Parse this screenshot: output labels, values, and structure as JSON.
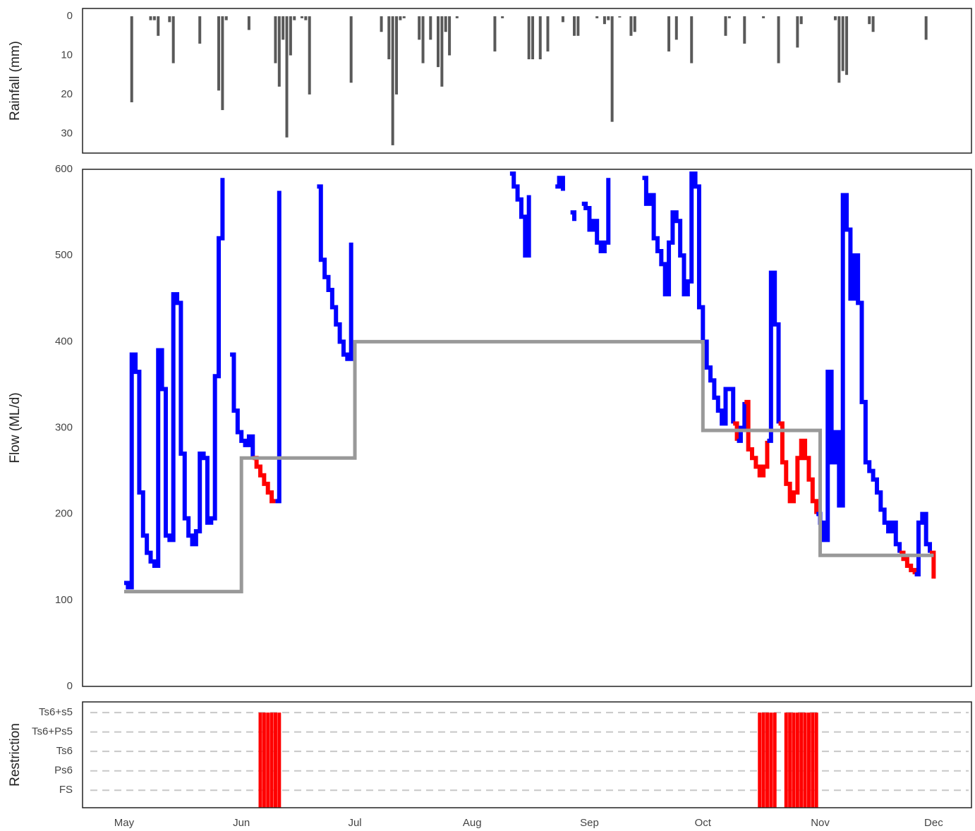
{
  "chart_data": [
    {
      "type": "bar",
      "ylabel": "Rainfall (mm)",
      "x": [
        2,
        7,
        8,
        9,
        12,
        13,
        20,
        25,
        26,
        27,
        33,
        40,
        41,
        42,
        43,
        44,
        45,
        47,
        48,
        49,
        60,
        68,
        70,
        71,
        72,
        73,
        74,
        78,
        79,
        81,
        83,
        84,
        85,
        86,
        88,
        98,
        100,
        107,
        108,
        110,
        112,
        116,
        119,
        120,
        125,
        127,
        128,
        129,
        131,
        134,
        135,
        144,
        146,
        150,
        159,
        160,
        164,
        169,
        173,
        178,
        179,
        188,
        189,
        190,
        191,
        197,
        198,
        212
      ],
      "values": [
        22,
        1,
        1,
        5,
        1.5,
        12,
        7,
        19,
        24,
        1,
        3.5,
        12,
        18,
        6,
        31,
        10,
        1,
        0.5,
        1,
        20,
        17,
        4,
        11,
        33,
        20,
        1,
        0.5,
        6,
        12,
        6,
        13,
        18,
        4,
        10,
        0.5,
        9,
        0.5,
        11,
        11,
        11,
        9,
        1.5,
        5,
        5,
        0.5,
        2,
        1,
        27,
        0.3,
        5,
        4,
        9,
        6,
        12,
        5,
        0.5,
        7,
        0.5,
        12,
        8,
        2,
        1,
        17,
        14,
        15,
        2,
        4,
        6
      ],
      "color": "#595959",
      "xlim": [
        -11,
        224
      ],
      "ylim": [
        -2,
        35
      ],
      "yticks": [
        0,
        10,
        20,
        30
      ],
      "y_inverted": true
    },
    {
      "type": "line",
      "ylabel": "Flow (ML/d)",
      "step": true,
      "x": [
        0,
        1,
        2,
        3,
        4,
        5,
        6,
        7,
        8,
        9,
        10,
        11,
        12,
        13,
        14,
        15,
        16,
        17,
        18,
        19,
        20,
        21,
        22,
        23,
        24,
        25,
        26,
        27,
        28,
        29,
        30,
        31,
        32,
        33,
        34,
        35,
        36,
        37,
        38,
        39,
        40,
        41,
        42,
        43,
        44,
        45,
        46,
        47,
        48,
        49,
        50,
        51,
        52,
        53,
        54,
        55,
        56,
        57,
        58,
        59,
        60,
        61,
        62,
        63,
        64,
        65,
        66,
        67,
        68,
        69,
        70,
        71,
        72,
        73,
        74,
        75,
        76,
        77,
        78,
        79,
        80,
        81,
        82,
        83,
        84,
        85,
        86,
        87,
        88,
        89,
        90,
        91,
        92,
        93,
        94,
        95,
        96,
        97,
        98,
        99,
        100,
        101,
        102,
        103,
        104,
        105,
        106,
        107,
        108,
        109,
        110,
        111,
        112,
        113,
        114,
        115,
        116,
        117,
        118,
        119,
        120,
        121,
        122,
        123,
        124,
        125,
        126,
        127,
        128,
        129,
        130,
        131,
        132,
        133,
        134,
        135,
        136,
        137,
        138,
        139,
        140,
        141,
        142,
        143,
        144,
        145,
        146,
        147,
        148,
        149,
        150,
        151,
        152,
        153,
        154,
        155,
        156,
        157,
        158,
        159,
        160,
        161,
        162,
        163,
        164,
        165,
        166,
        167,
        168,
        169,
        170,
        171,
        172,
        173,
        174,
        175,
        176,
        177,
        178,
        179,
        180,
        181,
        182,
        183,
        184,
        185,
        186,
        187,
        188,
        189,
        190,
        191,
        192,
        193,
        194,
        195,
        196,
        197,
        198,
        199,
        200,
        201,
        202,
        203,
        204,
        205,
        206,
        207,
        208,
        209,
        210,
        211,
        212,
        213,
        214
      ],
      "series": [
        {
          "color": "#0000ff",
          "below_color": "#ff0000",
          "compare_to": 1,
          "values": [
            120,
            115,
            385,
            365,
            225,
            175,
            155,
            145,
            140,
            390,
            345,
            175,
            170,
            455,
            445,
            270,
            195,
            175,
            165,
            180,
            270,
            265,
            190,
            195,
            360,
            520,
            590,
            null,
            385,
            320,
            295,
            285,
            280,
            290,
            265,
            255,
            245,
            235,
            225,
            215,
            215,
            575,
            null,
            570,
            null,
            null,
            null,
            null,
            null,
            null,
            null,
            580,
            495,
            475,
            460,
            440,
            420,
            400,
            385,
            380,
            515,
            null,
            null,
            null,
            null,
            null,
            null,
            null,
            null,
            null,
            null,
            null,
            null,
            null,
            null,
            null,
            null,
            null,
            null,
            null,
            null,
            null,
            null,
            null,
            null,
            null,
            null,
            null,
            null,
            null,
            null,
            null,
            null,
            null,
            null,
            null,
            null,
            null,
            null,
            null,
            null,
            null,
            595,
            580,
            565,
            545,
            500,
            570,
            null,
            null,
            null,
            null,
            null,
            null,
            580,
            590,
            575,
            null,
            550,
            540,
            null,
            560,
            555,
            530,
            540,
            515,
            505,
            515,
            590,
            null,
            null,
            null,
            null,
            null,
            null,
            null,
            null,
            590,
            560,
            570,
            520,
            505,
            490,
            455,
            515,
            550,
            540,
            500,
            455,
            470,
            595,
            580,
            440,
            400,
            370,
            355,
            335,
            320,
            305,
            345,
            345,
            305,
            285,
            300,
            330,
            275,
            265,
            255,
            245,
            255,
            285,
            480,
            420,
            305,
            260,
            235,
            215,
            225,
            265,
            285,
            265,
            240,
            215,
            200,
            190,
            170,
            365,
            260,
            295,
            210,
            570,
            530,
            450,
            500,
            445,
            330,
            260,
            250,
            240,
            225,
            205,
            190,
            180,
            190,
            165,
            155,
            148,
            140,
            135,
            130,
            190,
            200,
            165,
            155,
            125
          ]
        },
        {
          "color": "#999999",
          "values": [
            110,
            110,
            110,
            110,
            110,
            110,
            110,
            110,
            110,
            110,
            110,
            110,
            110,
            110,
            110,
            110,
            110,
            110,
            110,
            110,
            110,
            110,
            110,
            110,
            110,
            110,
            110,
            110,
            110,
            110,
            110,
            265,
            265,
            265,
            265,
            265,
            265,
            265,
            265,
            265,
            265,
            265,
            265,
            265,
            265,
            265,
            265,
            265,
            265,
            265,
            265,
            265,
            265,
            265,
            265,
            265,
            265,
            265,
            265,
            265,
            265,
            400,
            400,
            400,
            400,
            400,
            400,
            400,
            400,
            400,
            400,
            400,
            400,
            400,
            400,
            400,
            400,
            400,
            400,
            400,
            400,
            400,
            400,
            400,
            400,
            400,
            400,
            400,
            400,
            400,
            400,
            400,
            400,
            400,
            400,
            400,
            400,
            400,
            400,
            400,
            400,
            400,
            400,
            400,
            400,
            400,
            400,
            400,
            400,
            400,
            400,
            400,
            400,
            400,
            400,
            400,
            400,
            400,
            400,
            400,
            400,
            400,
            400,
            400,
            400,
            400,
            400,
            400,
            400,
            400,
            400,
            400,
            400,
            400,
            400,
            400,
            400,
            400,
            400,
            400,
            400,
            400,
            400,
            400,
            400,
            400,
            400,
            400,
            400,
            400,
            400,
            400,
            400,
            297,
            297,
            297,
            297,
            297,
            297,
            297,
            297,
            297,
            297,
            297,
            297,
            297,
            297,
            297,
            297,
            297,
            297,
            297,
            297,
            297,
            297,
            297,
            297,
            297,
            297,
            297,
            297,
            297,
            297,
            297,
            152,
            152,
            152,
            152,
            152,
            152,
            152,
            152,
            152,
            152,
            152,
            152,
            152,
            152,
            152,
            152,
            152,
            152,
            152,
            152,
            152,
            152,
            152,
            152,
            152,
            152,
            152,
            152,
            152,
            152,
            152
          ]
        }
      ],
      "xlim": [
        -11,
        224
      ],
      "ylim": [
        0,
        600
      ],
      "yticks": [
        0,
        100,
        200,
        300,
        400,
        500,
        600
      ]
    },
    {
      "type": "bar",
      "ylabel": "Restriction",
      "categories": [
        "FS",
        "Ps6",
        "Ts6",
        "Ts6+Ps5",
        "Ts6+s5"
      ],
      "x": [
        36,
        37,
        38,
        39,
        40,
        41,
        168,
        169,
        170,
        171,
        172,
        175,
        176,
        177,
        178,
        179,
        180,
        181,
        182,
        183
      ],
      "values": [
        "Ts6+s5",
        "Ts6+s5",
        "Ts6+s5",
        "Ts6+s5",
        "Ts6+s5",
        "Ts6+s5",
        "Ts6+s5",
        "Ts6+s5",
        "Ts6+s5",
        "Ts6+s5",
        "Ts6+s5",
        "Ts6+s5",
        "Ts6+s5",
        "Ts6+s5",
        "Ts6+s5",
        "Ts6+s5",
        "Ts6+s5",
        "Ts6+s5",
        "Ts6+s5",
        "Ts6+s5"
      ],
      "color": "#ff0000",
      "grid": true,
      "xlim": [
        -11,
        224
      ],
      "xticks": [
        {
          "value": 0,
          "label": "May"
        },
        {
          "value": 31,
          "label": "Jun"
        },
        {
          "value": 61,
          "label": "Jul"
        },
        {
          "value": 92,
          "label": "Aug"
        },
        {
          "value": 123,
          "label": "Sep"
        },
        {
          "value": 153,
          "label": "Oct"
        },
        {
          "value": 184,
          "label": "Nov"
        },
        {
          "value": 214,
          "label": "Dec"
        }
      ]
    }
  ]
}
